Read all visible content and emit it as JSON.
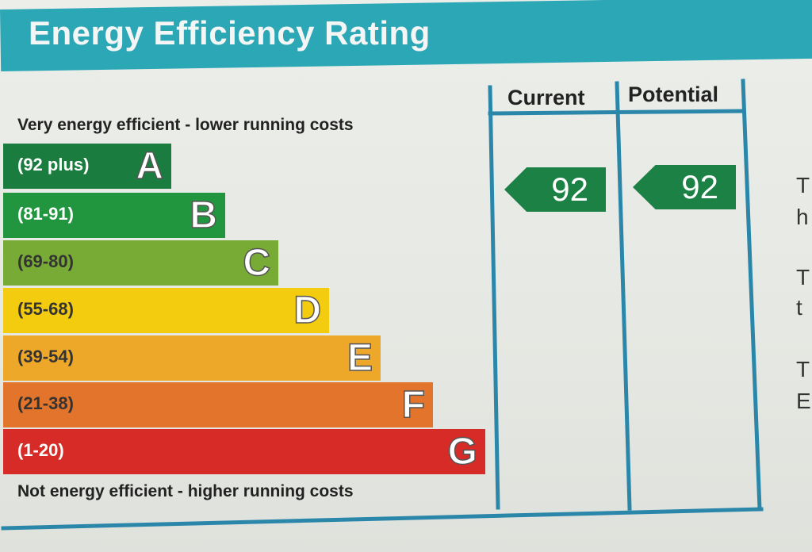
{
  "title": "Energy Efficiency Rating",
  "captions": {
    "top": "Very energy efficient - lower running costs",
    "bottom": "Not energy efficient - higher running costs"
  },
  "columns": {
    "current": "Current",
    "potential": "Potential"
  },
  "bands": [
    {
      "letter": "A",
      "range": "(92 plus)",
      "color": "#1a7d3f"
    },
    {
      "letter": "B",
      "range": "(81-91)",
      "color": "#21963f"
    },
    {
      "letter": "C",
      "range": "(69-80)",
      "color": "#78ab35"
    },
    {
      "letter": "D",
      "range": "(55-68)",
      "color": "#f3cc10"
    },
    {
      "letter": "E",
      "range": "(39-54)",
      "color": "#eda82a"
    },
    {
      "letter": "F",
      "range": "(21-38)",
      "color": "#e2742b"
    },
    {
      "letter": "G",
      "range": "(1-20)",
      "color": "#d62b27"
    }
  ],
  "ratings": {
    "current": "92",
    "potential": "92"
  },
  "colors": {
    "header": "#2ba7b6",
    "frame": "#2b87aa",
    "arrow": "#1b8144"
  },
  "side_text": [
    "T",
    "h",
    "T",
    "t",
    "T",
    "E"
  ]
}
